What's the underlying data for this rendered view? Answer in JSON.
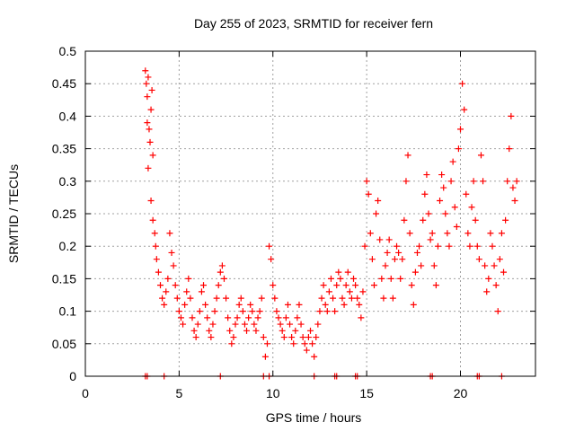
{
  "chart_data": {
    "type": "scatter",
    "title": "Day 255 of 2023, SRMTID for receiver fern",
    "xlabel": "GPS time / hours",
    "ylabel": "SRMTID / TECUs",
    "xlim": [
      0,
      24
    ],
    "ylim": [
      0,
      0.5
    ],
    "xticks": [
      0,
      5,
      10,
      15,
      20
    ],
    "yticks": [
      0,
      0.05,
      0.1,
      0.15,
      0.2,
      0.25,
      0.3,
      0.35,
      0.4,
      0.45,
      0.5
    ],
    "grid": true,
    "legend": "none",
    "marker": "plus",
    "color": "#ff0000",
    "series": [
      {
        "points": [
          [
            3.2,
            0.47
          ],
          [
            3.25,
            0.45
          ],
          [
            3.3,
            0.43
          ],
          [
            3.35,
            0.46
          ],
          [
            3.3,
            0.39
          ],
          [
            3.4,
            0.38
          ],
          [
            3.45,
            0.36
          ],
          [
            3.35,
            0.32
          ],
          [
            3.5,
            0.41
          ],
          [
            3.55,
            0.44
          ],
          [
            3.6,
            0.34
          ],
          [
            3.5,
            0.27
          ],
          [
            3.6,
            0.24
          ],
          [
            3.7,
            0.22
          ],
          [
            3.75,
            0.2
          ],
          [
            3.8,
            0.18
          ],
          [
            3.9,
            0.16
          ],
          [
            4.0,
            0.14
          ],
          [
            4.1,
            0.12
          ],
          [
            4.2,
            0.11
          ],
          [
            4.3,
            0.13
          ],
          [
            4.4,
            0.15
          ],
          [
            4.5,
            0.22
          ],
          [
            4.6,
            0.19
          ],
          [
            4.7,
            0.17
          ],
          [
            4.8,
            0.14
          ],
          [
            4.9,
            0.12
          ],
          [
            5.0,
            0.1
          ],
          [
            5.1,
            0.09
          ],
          [
            5.2,
            0.08
          ],
          [
            5.3,
            0.11
          ],
          [
            5.4,
            0.13
          ],
          [
            5.5,
            0.15
          ],
          [
            5.6,
            0.12
          ],
          [
            5.7,
            0.09
          ],
          [
            5.8,
            0.07
          ],
          [
            5.9,
            0.06
          ],
          [
            6.0,
            0.08
          ],
          [
            6.1,
            0.1
          ],
          [
            6.2,
            0.13
          ],
          [
            6.3,
            0.14
          ],
          [
            6.4,
            0.11
          ],
          [
            6.5,
            0.09
          ],
          [
            6.6,
            0.07
          ],
          [
            6.7,
            0.06
          ],
          [
            6.8,
            0.08
          ],
          [
            6.9,
            0.1
          ],
          [
            7.0,
            0.12
          ],
          [
            7.1,
            0.14
          ],
          [
            7.2,
            0.16
          ],
          [
            7.3,
            0.17
          ],
          [
            7.4,
            0.15
          ],
          [
            7.5,
            0.12
          ],
          [
            7.6,
            0.09
          ],
          [
            7.7,
            0.07
          ],
          [
            7.8,
            0.05
          ],
          [
            7.9,
            0.06
          ],
          [
            8.0,
            0.08
          ],
          [
            8.1,
            0.09
          ],
          [
            8.2,
            0.11
          ],
          [
            8.3,
            0.12
          ],
          [
            8.4,
            0.1
          ],
          [
            8.5,
            0.08
          ],
          [
            8.6,
            0.07
          ],
          [
            8.7,
            0.09
          ],
          [
            8.8,
            0.11
          ],
          [
            8.9,
            0.1
          ],
          [
            9.0,
            0.08
          ],
          [
            9.1,
            0.07
          ],
          [
            9.2,
            0.09
          ],
          [
            9.3,
            0.1
          ],
          [
            9.4,
            0.12
          ],
          [
            9.5,
            0.06
          ],
          [
            9.6,
            0.03
          ],
          [
            9.7,
            0.05
          ],
          [
            9.8,
            0.2
          ],
          [
            9.9,
            0.18
          ],
          [
            10.0,
            0.14
          ],
          [
            10.1,
            0.12
          ],
          [
            10.2,
            0.1
          ],
          [
            10.3,
            0.09
          ],
          [
            10.4,
            0.08
          ],
          [
            10.5,
            0.07
          ],
          [
            10.6,
            0.06
          ],
          [
            10.7,
            0.09
          ],
          [
            10.8,
            0.11
          ],
          [
            10.9,
            0.08
          ],
          [
            11.0,
            0.06
          ],
          [
            11.1,
            0.05
          ],
          [
            11.2,
            0.07
          ],
          [
            11.3,
            0.09
          ],
          [
            11.4,
            0.11
          ],
          [
            11.5,
            0.08
          ],
          [
            11.6,
            0.06
          ],
          [
            11.7,
            0.05
          ],
          [
            11.8,
            0.04
          ],
          [
            11.9,
            0.06
          ],
          [
            12.0,
            0.07
          ],
          [
            12.1,
            0.05
          ],
          [
            12.2,
            0.03
          ],
          [
            12.3,
            0.06
          ],
          [
            12.4,
            0.08
          ],
          [
            12.5,
            0.1
          ],
          [
            12.6,
            0.12
          ],
          [
            12.7,
            0.14
          ],
          [
            12.8,
            0.11
          ],
          [
            12.9,
            0.1
          ],
          [
            13.0,
            0.13
          ],
          [
            13.1,
            0.15
          ],
          [
            13.2,
            0.12
          ],
          [
            13.3,
            0.1
          ],
          [
            13.4,
            0.14
          ],
          [
            13.5,
            0.16
          ],
          [
            13.6,
            0.15
          ],
          [
            13.7,
            0.12
          ],
          [
            13.8,
            0.11
          ],
          [
            13.9,
            0.14
          ],
          [
            14.0,
            0.16
          ],
          [
            14.1,
            0.13
          ],
          [
            14.2,
            0.12
          ],
          [
            14.3,
            0.15
          ],
          [
            14.4,
            0.14
          ],
          [
            14.5,
            0.12
          ],
          [
            14.6,
            0.11
          ],
          [
            14.7,
            0.09
          ],
          [
            14.8,
            0.13
          ],
          [
            14.9,
            0.2
          ],
          [
            15.0,
            0.3
          ],
          [
            15.1,
            0.28
          ],
          [
            15.2,
            0.22
          ],
          [
            15.3,
            0.18
          ],
          [
            15.4,
            0.14
          ],
          [
            15.5,
            0.25
          ],
          [
            15.6,
            0.27
          ],
          [
            15.7,
            0.21
          ],
          [
            15.8,
            0.15
          ],
          [
            15.9,
            0.12
          ],
          [
            16.0,
            0.17
          ],
          [
            16.1,
            0.19
          ],
          [
            16.2,
            0.21
          ],
          [
            16.3,
            0.15
          ],
          [
            16.4,
            0.12
          ],
          [
            16.5,
            0.18
          ],
          [
            16.6,
            0.2
          ],
          [
            16.7,
            0.19
          ],
          [
            16.8,
            0.15
          ],
          [
            16.9,
            0.18
          ],
          [
            17.0,
            0.24
          ],
          [
            17.1,
            0.3
          ],
          [
            17.2,
            0.34
          ],
          [
            17.3,
            0.22
          ],
          [
            17.4,
            0.14
          ],
          [
            17.5,
            0.11
          ],
          [
            17.6,
            0.16
          ],
          [
            17.7,
            0.19
          ],
          [
            17.8,
            0.2
          ],
          [
            17.9,
            0.17
          ],
          [
            18.0,
            0.24
          ],
          [
            18.1,
            0.28
          ],
          [
            18.2,
            0.31
          ],
          [
            18.3,
            0.25
          ],
          [
            18.4,
            0.21
          ],
          [
            18.5,
            0.22
          ],
          [
            18.6,
            0.17
          ],
          [
            18.7,
            0.14
          ],
          [
            18.8,
            0.2
          ],
          [
            18.9,
            0.27
          ],
          [
            19.0,
            0.31
          ],
          [
            19.1,
            0.29
          ],
          [
            19.2,
            0.25
          ],
          [
            19.3,
            0.22
          ],
          [
            19.4,
            0.2
          ],
          [
            19.5,
            0.3
          ],
          [
            19.6,
            0.33
          ],
          [
            19.7,
            0.26
          ],
          [
            19.8,
            0.23
          ],
          [
            19.9,
            0.35
          ],
          [
            20.0,
            0.38
          ],
          [
            20.1,
            0.45
          ],
          [
            20.2,
            0.41
          ],
          [
            20.3,
            0.28
          ],
          [
            20.4,
            0.22
          ],
          [
            20.5,
            0.2
          ],
          [
            20.6,
            0.26
          ],
          [
            20.7,
            0.3
          ],
          [
            20.8,
            0.24
          ],
          [
            20.9,
            0.2
          ],
          [
            21.0,
            0.18
          ],
          [
            21.1,
            0.34
          ],
          [
            21.2,
            0.3
          ],
          [
            21.3,
            0.17
          ],
          [
            21.4,
            0.13
          ],
          [
            21.5,
            0.15
          ],
          [
            21.6,
            0.22
          ],
          [
            21.7,
            0.2
          ],
          [
            21.8,
            0.17
          ],
          [
            21.9,
            0.14
          ],
          [
            22.0,
            0.1
          ],
          [
            22.1,
            0.18
          ],
          [
            22.2,
            0.22
          ],
          [
            22.3,
            0.16
          ],
          [
            22.4,
            0.24
          ],
          [
            22.5,
            0.3
          ],
          [
            22.6,
            0.35
          ],
          [
            22.7,
            0.4
          ],
          [
            22.8,
            0.29
          ],
          [
            22.9,
            0.27
          ],
          [
            23.0,
            0.3
          ],
          [
            3.2,
            0
          ],
          [
            3.3,
            0
          ],
          [
            4.2,
            0
          ],
          [
            7.2,
            0
          ],
          [
            9.5,
            0
          ],
          [
            9.8,
            0
          ],
          [
            12.2,
            0
          ],
          [
            13.3,
            0
          ],
          [
            13.4,
            0
          ],
          [
            14.4,
            0
          ],
          [
            14.5,
            0
          ],
          [
            18.4,
            0
          ],
          [
            18.5,
            0
          ],
          [
            20.9,
            0
          ],
          [
            21.0,
            0
          ],
          [
            22.2,
            0
          ]
        ]
      }
    ]
  }
}
